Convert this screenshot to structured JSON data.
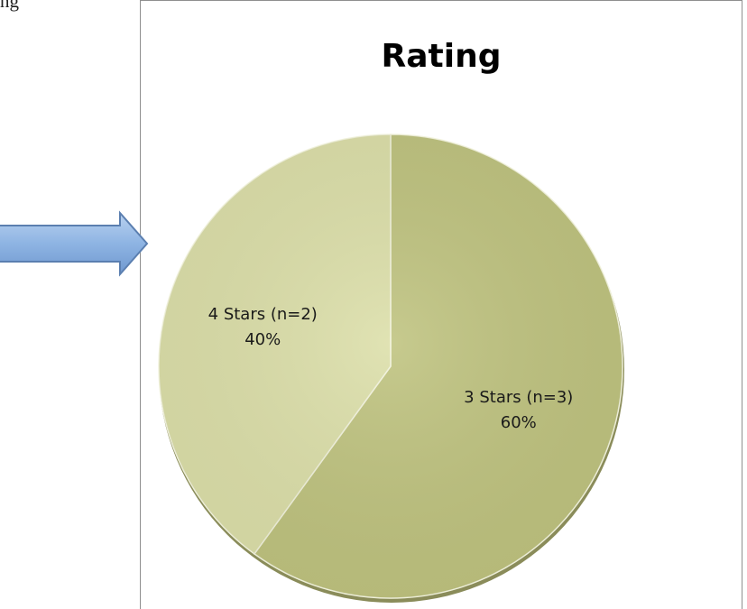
{
  "page": {
    "top_text": "ng"
  },
  "chart_data": {
    "type": "pie",
    "title": "Rating",
    "slices": [
      {
        "label": "3 Stars (n=3)",
        "pct_label": "60%",
        "value": 60,
        "color": "#bfc37f"
      },
      {
        "label": "4 Stars (n=2)",
        "pct_label": "40%",
        "value": 40,
        "color": "#dcdfa9"
      }
    ],
    "start_angle_deg": 0,
    "direction": "clockwise",
    "legend": "none"
  },
  "arrow": {
    "color": "#8eb4e3",
    "direction": "right"
  }
}
